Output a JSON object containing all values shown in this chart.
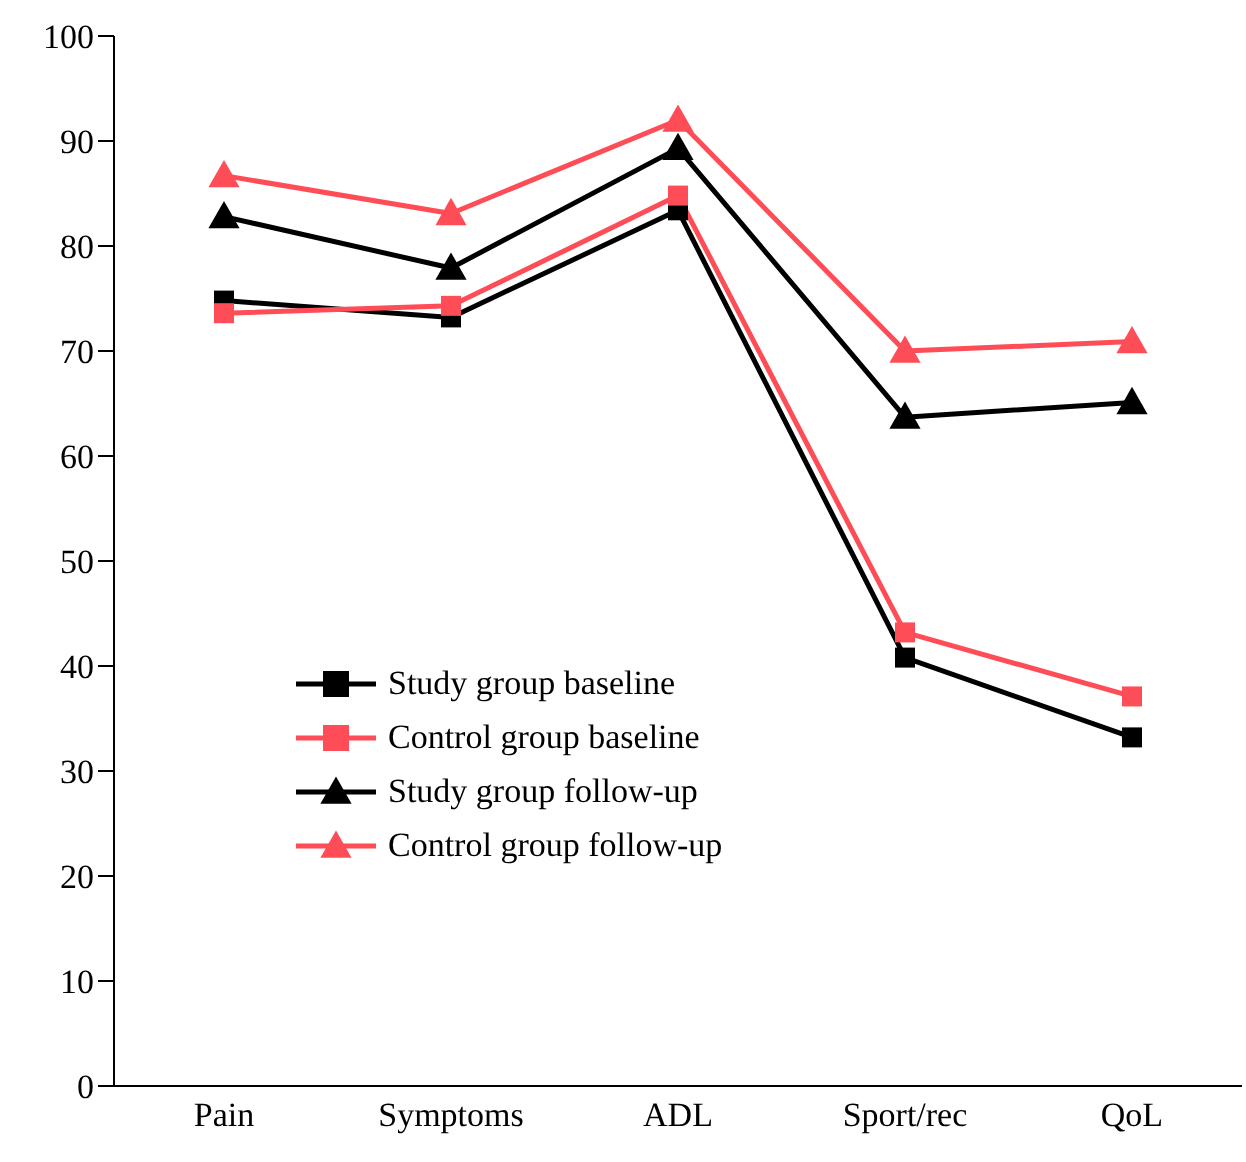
{
  "chart_data": {
    "type": "line",
    "categories": [
      "Pain",
      "Symptoms",
      "ADL",
      "Sport/rec",
      "QoL"
    ],
    "series": [
      {
        "name": "Study group baseline",
        "color": "#000000",
        "marker": "square",
        "values": [
          74.8,
          73.2,
          83.4,
          40.8,
          33.2
        ]
      },
      {
        "name": "Control group baseline",
        "color": "#ff4d57",
        "marker": "square",
        "values": [
          73.6,
          74.3,
          84.8,
          43.2,
          37.1
        ]
      },
      {
        "name": "Study group follow-up",
        "color": "#000000",
        "marker": "triangle",
        "values": [
          82.8,
          77.9,
          89.3,
          63.7,
          65.1
        ]
      },
      {
        "name": "Control group follow-up",
        "color": "#ff4d57",
        "marker": "triangle",
        "values": [
          86.7,
          83.1,
          92.0,
          70.0,
          70.9
        ]
      }
    ],
    "ylim": [
      0,
      100
    ],
    "yticks": [
      0,
      10,
      20,
      30,
      40,
      50,
      60,
      70,
      80,
      90,
      100
    ],
    "grid": false,
    "legend": "left",
    "line_style": "solid"
  }
}
